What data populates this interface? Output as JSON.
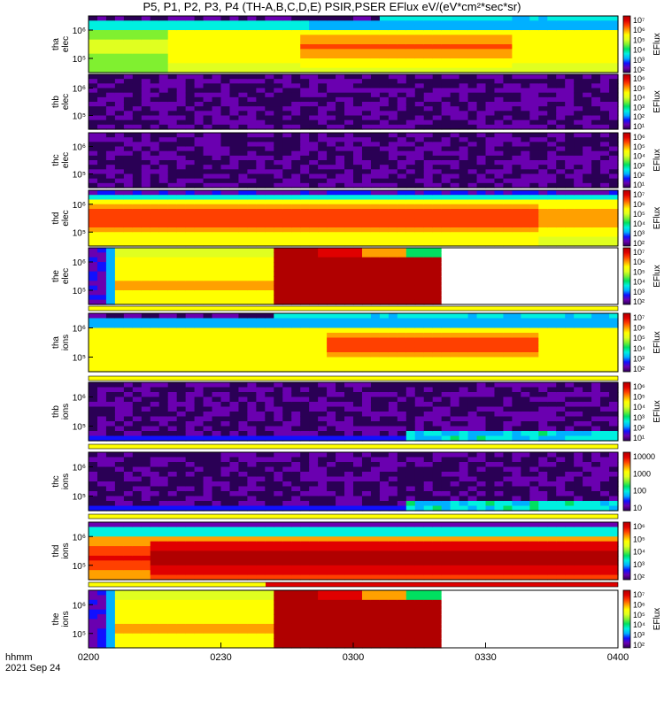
{
  "title": "P5, P1, P2, P3, P4 (TH-A,B,C,D,E) PSIR,PSER EFlux eV/(eV*cm²*sec*sr)",
  "time_axis": {
    "label": "hhmm",
    "date": "2021 Sep 24",
    "ticks": [
      "0200",
      "0230",
      "0300",
      "0330",
      "0400"
    ]
  },
  "chart_data": {
    "type": "heatmap",
    "title": "P5, P1, P2, P3, P4 (TH-A,B,C,D,E) PSIR,PSER EFlux eV/(eV*cm²*sec*sr)",
    "x": {
      "ticks": [
        "0200",
        "0230",
        "0300",
        "0330",
        "0400"
      ],
      "label": "hhmm",
      "date": "2021 Sep 24"
    },
    "colormap": [
      "#2a0055",
      "#6a00b0",
      "#1010ff",
      "#00b0ff",
      "#00f0e0",
      "#00e060",
      "#80f030",
      "#e0ff20",
      "#ffff00",
      "#ffa000",
      "#ff4000",
      "#e00000",
      "#b00000"
    ],
    "panels": [
      {
        "probe": "tha",
        "species": "elec",
        "yticks": [
          "10⁶",
          "10⁵"
        ],
        "cbar_ticks": [
          "10⁷",
          "10⁶",
          "10⁵",
          "10⁴",
          "10³",
          "10²"
        ],
        "cbar_label": "EFlux",
        "pattern": "elec-quiet",
        "band": null
      },
      {
        "probe": "thb",
        "species": "elec",
        "yticks": [
          "10⁶",
          "10⁵"
        ],
        "cbar_ticks": [
          "10⁶",
          "10⁵",
          "10⁴",
          "10³",
          "10²",
          "10¹"
        ],
        "cbar_label": "EFlux",
        "pattern": "noise",
        "band": null
      },
      {
        "probe": "thc",
        "species": "elec",
        "yticks": [
          "10⁶",
          "10⁵"
        ],
        "cbar_ticks": [
          "10⁶",
          "10⁵",
          "10⁴",
          "10³",
          "10²",
          "10¹"
        ],
        "cbar_label": "EFlux",
        "pattern": "noise",
        "band": null
      },
      {
        "probe": "thd",
        "species": "elec",
        "yticks": [
          "10⁶",
          "10⁵"
        ],
        "cbar_ticks": [
          "10⁷",
          "10⁶",
          "10⁵",
          "10⁴",
          "10³",
          "10²"
        ],
        "cbar_label": "EFlux",
        "pattern": "elec-d",
        "band": null
      },
      {
        "probe": "the",
        "species": "elec",
        "yticks": [
          "10⁶",
          "10⁵"
        ],
        "cbar_ticks": [
          "10⁷",
          "10⁶",
          "10⁵",
          "10⁴",
          "10³",
          "10²"
        ],
        "cbar_label": "EFlux",
        "pattern": "the",
        "band": "yellow"
      },
      {
        "probe": "tha",
        "species": "ions",
        "yticks": [
          "10⁶",
          "10⁵"
        ],
        "cbar_ticks": [
          "10⁷",
          "10⁶",
          "10⁵",
          "10⁴",
          "10³",
          "10²"
        ],
        "cbar_label": "EFlux",
        "pattern": "ion-a",
        "band": "yellow"
      },
      {
        "probe": "thb",
        "species": "ions",
        "yticks": [
          "10⁶",
          "10⁵"
        ],
        "cbar_ticks": [
          "10⁶",
          "10⁵",
          "10⁴",
          "10³",
          "10²",
          "10¹"
        ],
        "cbar_label": "EFlux",
        "pattern": "noise-ion",
        "band": "yellow"
      },
      {
        "probe": "thc",
        "species": "ions",
        "yticks": [
          "10⁶",
          "10⁵"
        ],
        "cbar_ticks": [
          "10000",
          "1000",
          "100",
          "10"
        ],
        "cbar_label": "",
        "pattern": "noise-ion",
        "band": "yellow"
      },
      {
        "probe": "thd",
        "species": "ions",
        "yticks": [
          "10⁶",
          "10⁵"
        ],
        "cbar_ticks": [
          "10⁶",
          "10⁵",
          "10⁴",
          "10³",
          "10²"
        ],
        "cbar_label": "",
        "pattern": "ion-d",
        "band": "yellow-red"
      },
      {
        "probe": "the",
        "species": "ions",
        "yticks": [
          "10⁶",
          "10⁵"
        ],
        "cbar_ticks": [
          "10⁷",
          "10⁶",
          "10⁵",
          "10⁴",
          "10³",
          "10²"
        ],
        "cbar_label": "EFlux",
        "pattern": "the",
        "band": null
      }
    ]
  }
}
